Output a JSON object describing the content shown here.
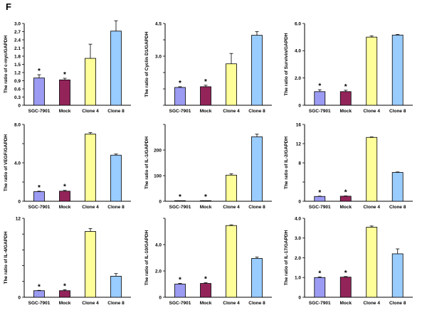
{
  "figure": {
    "panel_letter": "F"
  },
  "colors": {
    "SGC-7901": "#9b9bf3",
    "Mock": "#93245a",
    "Clone 4": "#ffff99",
    "Clone 8": "#99ccff",
    "axis": "#000000"
  },
  "chart_data": [
    {
      "type": "bar",
      "ylabel": "The ratio of c-myc/GAPDH",
      "categories": [
        "SGC-7901",
        "Mock",
        "Clone 4",
        "Clone 8"
      ],
      "values": [
        1.0,
        0.93,
        1.72,
        2.72
      ],
      "errors": [
        0.12,
        0.06,
        0.52,
        0.38
      ],
      "significant": [
        true,
        true,
        false,
        false
      ],
      "ylim": [
        0,
        3
      ],
      "yticks": [
        "0",
        "0.3",
        "0.6",
        "0.9",
        "1.2",
        "1.5",
        "1.8",
        "2.1",
        "2.4",
        "2.7",
        "3.0"
      ]
    },
    {
      "type": "bar",
      "ylabel": "The ratio of Cyclin D1/GAPDH",
      "categories": [
        "SGC-7901",
        "Mock",
        "Clone 4",
        "Clone 8"
      ],
      "values": [
        0.98,
        1.02,
        2.28,
        3.85
      ],
      "errors": [
        0.04,
        0.08,
        0.57,
        0.2
      ],
      "significant": [
        true,
        true,
        false,
        false
      ],
      "ylim": [
        0,
        4.5
      ],
      "yticks": [
        "",
        "",
        "",
        "3.0",
        "",
        "4.5"
      ]
    },
    {
      "type": "bar",
      "ylabel": "The ratio of Survivin/GAPDH",
      "categories": [
        "SGC-7901",
        "Mock",
        "Clone 4",
        "Clone 8"
      ],
      "values": [
        1.0,
        1.0,
        5.0,
        5.15
      ],
      "errors": [
        0.14,
        0.1,
        0.08,
        0.04
      ],
      "significant": [
        true,
        true,
        false,
        false
      ],
      "ylim": [
        0,
        6
      ],
      "yticks": [
        "0",
        "2.0",
        "4.0",
        "6.0"
      ]
    },
    {
      "type": "bar",
      "ylabel": "The ratio of VEGF/GAPDH",
      "categories": [
        "SGC-7901",
        "Mock",
        "Clone 4",
        "Clone 8"
      ],
      "values": [
        1.0,
        1.05,
        7.0,
        4.8
      ],
      "errors": [
        0.05,
        0.08,
        0.15,
        0.12
      ],
      "significant": [
        true,
        true,
        false,
        false
      ],
      "ylim": [
        0,
        8
      ],
      "yticks": [
        "0",
        "",
        "4.0",
        "",
        "8.0"
      ]
    },
    {
      "type": "bar",
      "ylabel": "The ratio of IL-1/GAPDH",
      "categories": [
        "SGC-7901",
        "Mock",
        "Clone 4",
        "Clone 8"
      ],
      "values": [
        1.0,
        1.0,
        102,
        252
      ],
      "errors": [
        0.1,
        0.1,
        5,
        10
      ],
      "significant": [
        true,
        true,
        false,
        false
      ],
      "ylim": [
        0,
        300
      ],
      "yticks": [
        "0",
        "100",
        "200",
        ""
      ]
    },
    {
      "type": "bar",
      "ylabel": "The ratio of IL-2/GAPDH",
      "categories": [
        "SGC-7901",
        "Mock",
        "Clone 4",
        "Clone 8"
      ],
      "values": [
        1.0,
        1.05,
        13.3,
        6.0
      ],
      "errors": [
        0.06,
        0.06,
        0.1,
        0.1
      ],
      "significant": [
        true,
        true,
        false,
        false
      ],
      "ylim": [
        0,
        16
      ],
      "yticks": [
        "0",
        "",
        "8",
        "12",
        "16"
      ]
    },
    {
      "type": "bar",
      "ylabel": "The ratio of IL-4/GAPDH",
      "categories": [
        "SGC-7901",
        "Mock",
        "Clone 4",
        "Clone 8"
      ],
      "values": [
        1.0,
        1.0,
        10.0,
        3.2
      ],
      "errors": [
        0.05,
        0.15,
        0.45,
        0.4
      ],
      "significant": [
        true,
        true,
        false,
        false
      ],
      "ylim": [
        0,
        12
      ],
      "yticks": [
        "0",
        "",
        "",
        "",
        "",
        "12"
      ]
    },
    {
      "type": "bar",
      "ylabel": "The ratio of IL-10/GAPDH",
      "categories": [
        "SGC-7901",
        "Mock",
        "Clone 4",
        "Clone 8"
      ],
      "values": [
        1.0,
        1.05,
        5.45,
        2.95
      ],
      "errors": [
        0.05,
        0.05,
        0.05,
        0.1
      ],
      "significant": [
        true,
        true,
        false,
        false
      ],
      "ylim": [
        0,
        6
      ],
      "yticks": [
        "0",
        "2.0",
        "4.0",
        ""
      ]
    },
    {
      "type": "bar",
      "ylabel": "The ratio of IL-17/GAPDH",
      "categories": [
        "SGC-7901",
        "Mock",
        "Clone 4",
        "Clone 8"
      ],
      "values": [
        1.0,
        1.02,
        3.55,
        2.2
      ],
      "errors": [
        0.03,
        0.03,
        0.06,
        0.25
      ],
      "significant": [
        true,
        true,
        false,
        false
      ],
      "ylim": [
        0,
        4
      ],
      "yticks": [
        "0",
        "1.0",
        "2.0",
        "3.0",
        "4.0"
      ]
    }
  ]
}
